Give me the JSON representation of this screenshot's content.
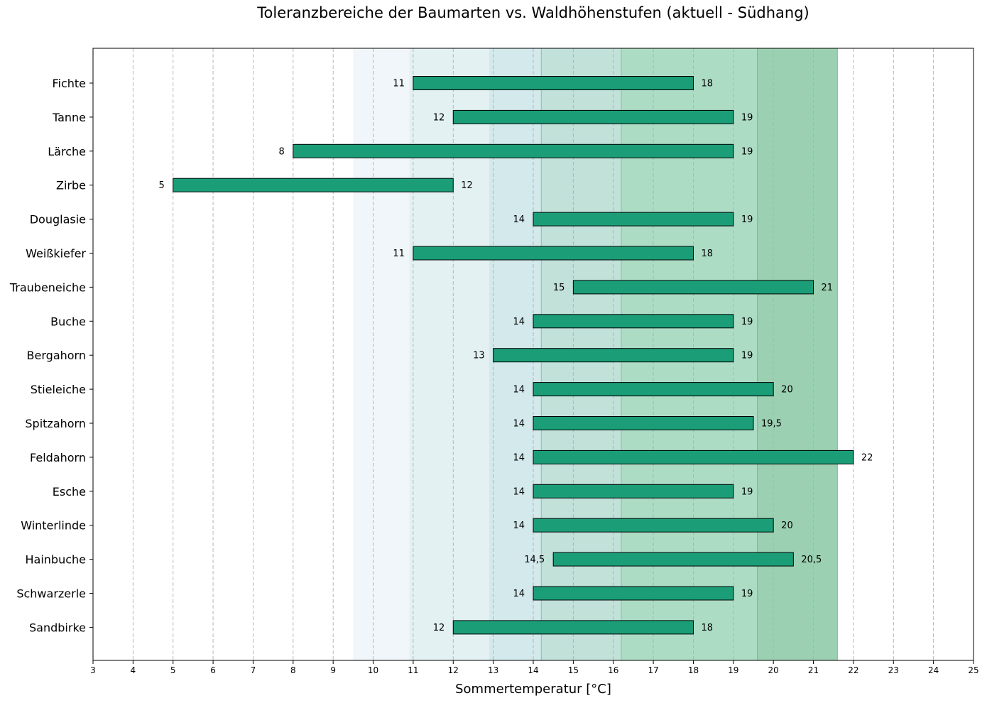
{
  "chart_data": {
    "type": "bar",
    "orientation": "horizontal-range",
    "title": "Toleranzbereiche der Baumarten vs. Waldhöhenstufen (aktuell - Südhang)",
    "xlabel": "Sommertemperatur [°C]",
    "ylabel": "",
    "xlim": [
      3,
      25
    ],
    "x_ticks": [
      "3",
      "4",
      "5",
      "6",
      "7",
      "8",
      "9",
      "10",
      "11",
      "12",
      "13",
      "14",
      "15",
      "16",
      "17",
      "18",
      "19",
      "20",
      "21",
      "22",
      "23",
      "24",
      "25"
    ],
    "grid": "vertical dashed",
    "bar_color": "#1b9e77",
    "categories": [
      "Fichte",
      "Tanne",
      "Lärche",
      "Zirbe",
      "Douglasie",
      "Weißkiefer",
      "Traubeneiche",
      "Buche",
      "Bergahorn",
      "Stieleiche",
      "Spitzahorn",
      "Feldahorn",
      "Esche",
      "Winterlinde",
      "Hainbuche",
      "Schwarzerle",
      "Sandbirke"
    ],
    "ranges": [
      {
        "min": 11,
        "max": 18,
        "min_label": "11",
        "max_label": "18"
      },
      {
        "min": 12,
        "max": 19,
        "min_label": "12",
        "max_label": "19"
      },
      {
        "min": 8,
        "max": 19,
        "min_label": "8",
        "max_label": "19"
      },
      {
        "min": 5,
        "max": 12,
        "min_label": "5",
        "max_label": "12"
      },
      {
        "min": 14,
        "max": 19,
        "min_label": "14",
        "max_label": "19"
      },
      {
        "min": 11,
        "max": 18,
        "min_label": "11",
        "max_label": "18"
      },
      {
        "min": 15,
        "max": 21,
        "min_label": "15",
        "max_label": "21"
      },
      {
        "min": 14,
        "max": 19,
        "min_label": "14",
        "max_label": "19"
      },
      {
        "min": 13,
        "max": 19,
        "min_label": "13",
        "max_label": "19"
      },
      {
        "min": 14,
        "max": 20,
        "min_label": "14",
        "max_label": "20"
      },
      {
        "min": 14,
        "max": 19.5,
        "min_label": "14",
        "max_label": "19,5"
      },
      {
        "min": 14,
        "max": 22,
        "min_label": "14",
        "max_label": "22"
      },
      {
        "min": 14,
        "max": 19,
        "min_label": "14",
        "max_label": "19"
      },
      {
        "min": 14,
        "max": 20,
        "min_label": "14",
        "max_label": "20"
      },
      {
        "min": 14.5,
        "max": 20.5,
        "min_label": "14,5",
        "max_label": "20,5"
      },
      {
        "min": 14,
        "max": 19,
        "min_label": "14",
        "max_label": "19"
      },
      {
        "min": 12,
        "max": 18,
        "min_label": "12",
        "max_label": "18"
      }
    ],
    "zones": [
      {
        "from": 9.5,
        "to": 10.9,
        "color": "#f0f6f9"
      },
      {
        "from": 10.9,
        "to": 12.9,
        "color": "#e3f1f3"
      },
      {
        "from": 12.9,
        "to": 14.2,
        "color": "#d3e9ec"
      },
      {
        "from": 14.2,
        "to": 16.2,
        "color": "#c1e1d9"
      },
      {
        "from": 16.2,
        "to": 19.6,
        "color": "#addcc5"
      },
      {
        "from": 19.6,
        "to": 21.6,
        "color": "#9bd1b2"
      }
    ]
  }
}
